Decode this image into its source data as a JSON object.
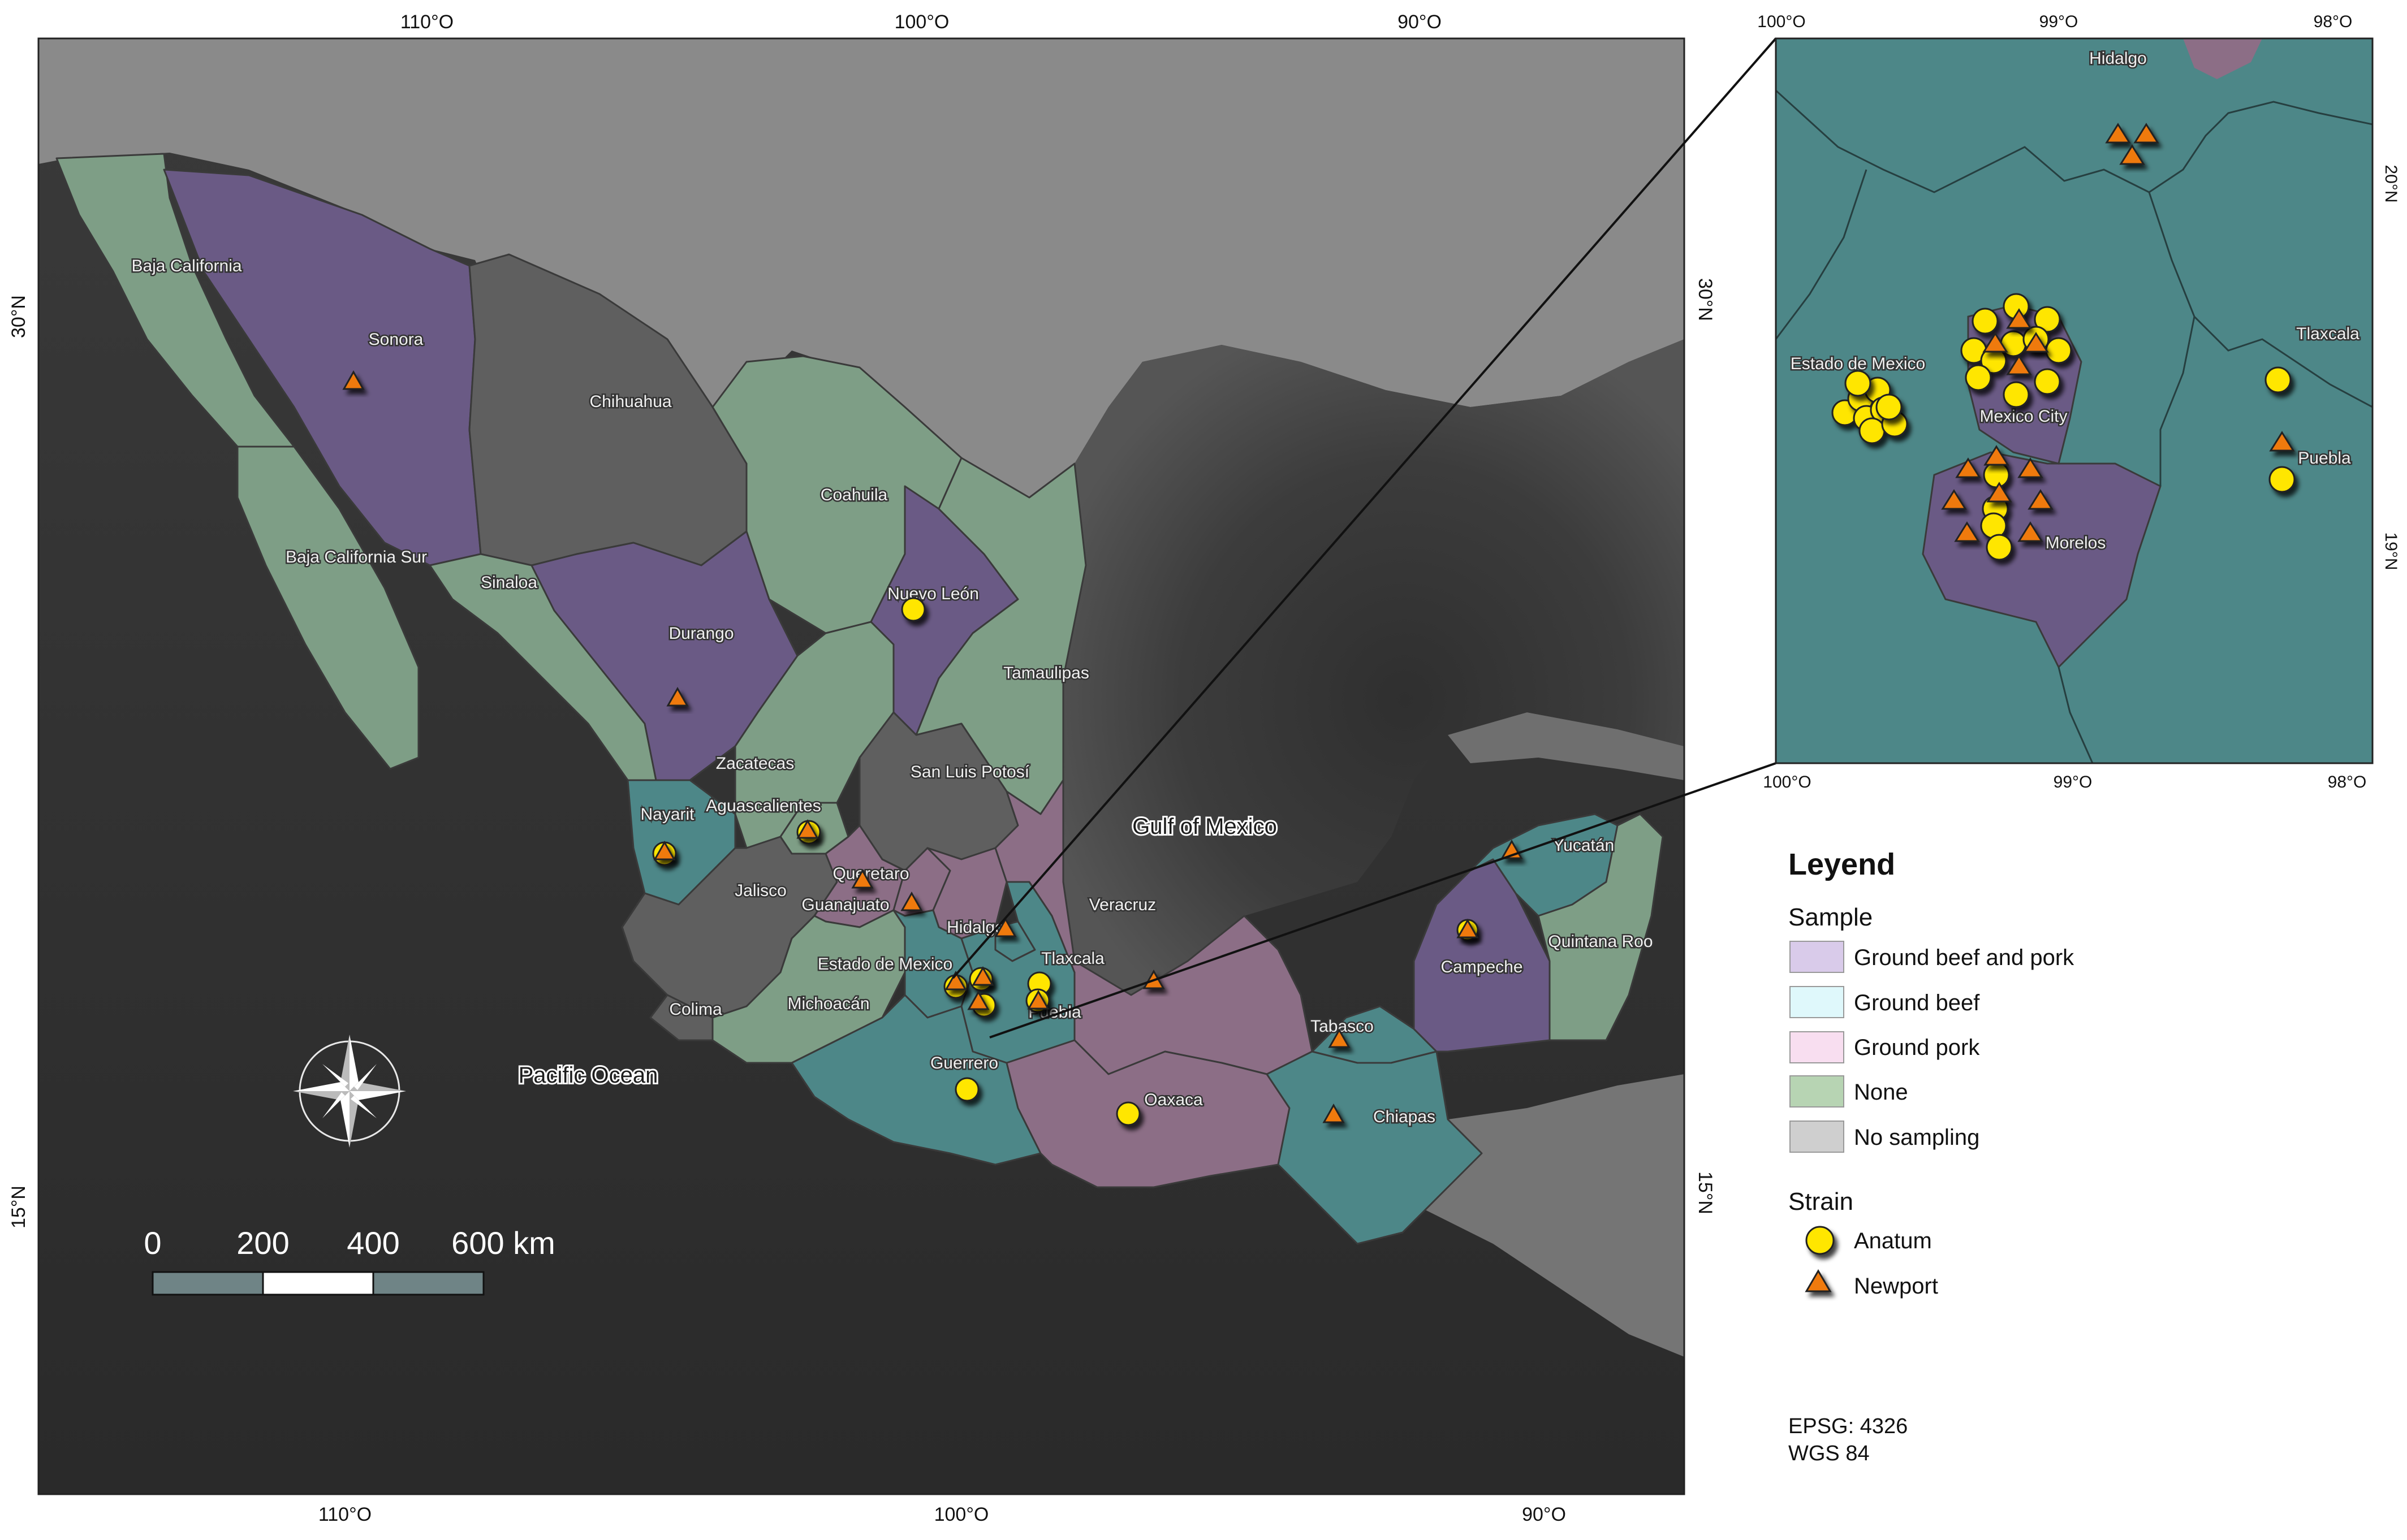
{
  "map": {
    "ocean_labels": {
      "gulf": "Gulf of Mexico",
      "pacific": "Pacific Ocean"
    },
    "states": [
      {
        "name": "Baja California",
        "fill": "none"
      },
      {
        "name": "Sonora",
        "fill": "beef_pork"
      },
      {
        "name": "Chihuahua",
        "fill": "no_sampling"
      },
      {
        "name": "Coahuila",
        "fill": "none"
      },
      {
        "name": "Baja California Sur",
        "fill": "none"
      },
      {
        "name": "Sinaloa",
        "fill": "none"
      },
      {
        "name": "Durango",
        "fill": "beef_pork"
      },
      {
        "name": "Nuevo León",
        "fill": "beef_pork"
      },
      {
        "name": "Tamaulipas",
        "fill": "none"
      },
      {
        "name": "Zacatecas",
        "fill": "none"
      },
      {
        "name": "San Luis Potosí",
        "fill": "no_sampling"
      },
      {
        "name": "Nayarit",
        "fill": "beef"
      },
      {
        "name": "Aguascalientes",
        "fill": "none"
      },
      {
        "name": "Jalisco",
        "fill": "no_sampling"
      },
      {
        "name": "Queretaro",
        "fill": "pork"
      },
      {
        "name": "Guanajuato",
        "fill": "pork"
      },
      {
        "name": "Hidalgo",
        "fill": "pork"
      },
      {
        "name": "Veracruz",
        "fill": "pork"
      },
      {
        "name": "Estado de Mexico",
        "fill": "beef"
      },
      {
        "name": "Tlaxcala",
        "fill": "beef"
      },
      {
        "name": "Michoacán",
        "fill": "none"
      },
      {
        "name": "Puebla",
        "fill": "beef"
      },
      {
        "name": "Colima",
        "fill": "no_sampling"
      },
      {
        "name": "Guerrero",
        "fill": "beef"
      },
      {
        "name": "Oaxaca",
        "fill": "pork"
      },
      {
        "name": "Tabasco",
        "fill": "beef"
      },
      {
        "name": "Chiapas",
        "fill": "beef"
      },
      {
        "name": "Campeche",
        "fill": "beef_pork"
      },
      {
        "name": "Yucatán",
        "fill": "beef"
      },
      {
        "name": "Quintana Roo",
        "fill": "none"
      }
    ],
    "ticks_top": [
      "110°O",
      "100°O",
      "90°O"
    ],
    "ticks_bottom": [
      "110°O",
      "100°O",
      "90°O"
    ],
    "ticks_left": [
      "30°N",
      "15°N"
    ],
    "ticks_right": [
      "30°N",
      "15°N"
    ],
    "scale": {
      "labels": [
        "0",
        "200",
        "400",
        "600 km"
      ]
    }
  },
  "inset": {
    "ticks_top": [
      "100°O",
      "99°O",
      "98°O"
    ],
    "ticks_bottom": [
      "100°O",
      "99°O",
      "98°O"
    ],
    "ticks_right": [
      "20°N",
      "19°N"
    ],
    "labels": {
      "hidalgo": "Hidalgo",
      "estado": "Estado de Mexico",
      "mexico_city": "Mexico City",
      "morelos": "Morelos",
      "tlaxcala": "Tlaxcala",
      "puebla": "Puebla"
    }
  },
  "legend": {
    "title": "Leyend",
    "sample_title": "Sample",
    "samples": [
      {
        "label": "Ground beef and pork",
        "color": "#d9cbea"
      },
      {
        "label": "Ground beef",
        "color": "#dff8fb"
      },
      {
        "label": "Ground pork",
        "color": "#f8def0"
      },
      {
        "label": "None",
        "color": "#b7d4b3"
      },
      {
        "label": "No sampling",
        "color": "#cfcfcf"
      }
    ],
    "strain_title": "Strain",
    "strains": [
      {
        "label": "Anatum",
        "symbol": "circle",
        "color": "#ffe600"
      },
      {
        "label": "Newport",
        "symbol": "triangle",
        "color": "#ef7a10"
      }
    ],
    "epsg": "EPSG: 4326",
    "datum": "WGS 84"
  },
  "colors": {
    "beef_pork": "#6a5a85",
    "beef": "#4d8788",
    "pork": "#8c6e86",
    "none": "#7e9e86",
    "no_sampling": "#5f5f5f",
    "ocean_shallow": "#525252",
    "ocean_deep": "#2b2b2b",
    "land_outside": "#8d8d8d",
    "anatum": "#ffe600",
    "newport": "#ef7a10"
  }
}
